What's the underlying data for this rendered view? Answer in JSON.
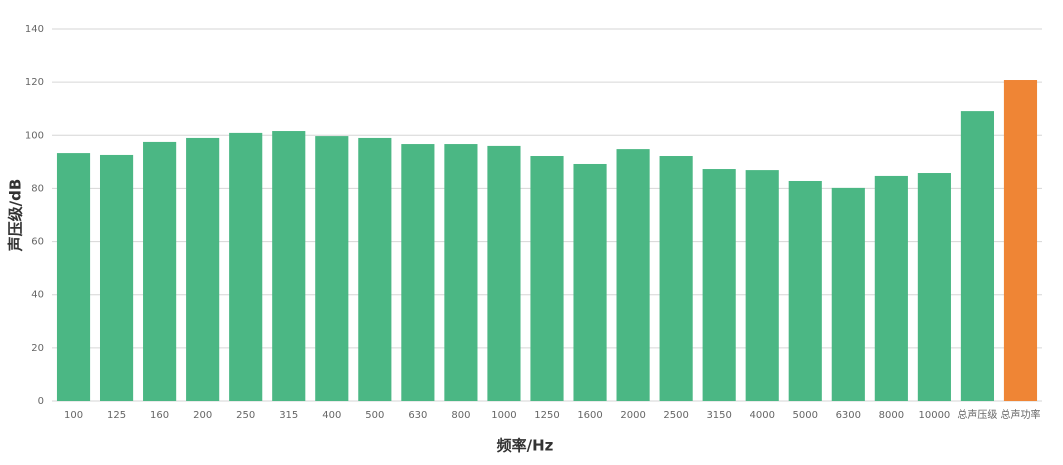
{
  "chart_data": {
    "type": "bar",
    "x_label": "频率/Hz",
    "y_label": "声压级/dB",
    "categories": [
      "100",
      "125",
      "160",
      "200",
      "250",
      "315",
      "400",
      "500",
      "630",
      "800",
      "1000",
      "1250",
      "1600",
      "2000",
      "2500",
      "3150",
      "4000",
      "5000",
      "6300",
      "8000",
      "10000",
      "总声压级",
      "总声功率"
    ],
    "values": [
      93.3,
      92.6,
      97.5,
      99,
      100.9,
      101.6,
      99.7,
      99,
      96.7,
      96.7,
      96,
      92.2,
      89.2,
      94.8,
      92.2,
      87.3,
      86.9,
      82.8,
      80.2,
      84.7,
      85.8,
      109.1,
      120.8
    ],
    "colors": [
      "#4bb784",
      "#4bb784",
      "#4bb784",
      "#4bb784",
      "#4bb784",
      "#4bb784",
      "#4bb784",
      "#4bb784",
      "#4bb784",
      "#4bb784",
      "#4bb784",
      "#4bb784",
      "#4bb784",
      "#4bb784",
      "#4bb784",
      "#4bb784",
      "#4bb784",
      "#4bb784",
      "#4bb784",
      "#4bb784",
      "#4bb784",
      "#4bb784",
      "#ef8535"
    ],
    "ylim": [
      0,
      140
    ],
    "yticks": [
      0,
      20,
      40,
      60,
      80,
      100,
      120,
      140
    ],
    "grid": true
  }
}
